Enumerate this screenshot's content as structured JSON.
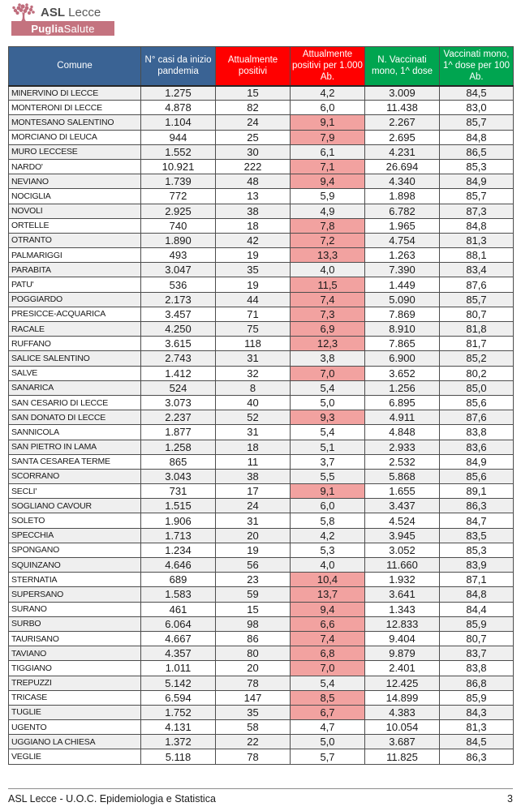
{
  "logo": {
    "asl_bold": "ASL",
    "asl_rest": " Lecce",
    "banner_bold": "Puglia",
    "banner_rest": "Salute",
    "banner_bg": "#c4737f",
    "tree_color": "#bf6d7d"
  },
  "table": {
    "headers": [
      {
        "label": "Comune",
        "bg": "#3a6394"
      },
      {
        "label": "N° casi da inizio pandemia",
        "bg": "#3a6394"
      },
      {
        "label": "Attualmente positivi",
        "bg": "#ff0000"
      },
      {
        "label": "Attualmente positivi per 1.000 Ab.",
        "bg": "#ff0000"
      },
      {
        "label": "N. Vaccinati mono, 1^ dose",
        "bg": "#00a550"
      },
      {
        "label": "Vaccinati mono, 1^ dose per 100 Ab.",
        "bg": "#00a550"
      }
    ],
    "highlight_color": "#f2a2a0",
    "rows": [
      {
        "comune": "MINERVINO DI LECCE",
        "casi": "1.275",
        "pos": "15",
        "rate": "4,2",
        "hl": false,
        "vacc": "3.009",
        "cov": "84,5"
      },
      {
        "comune": "MONTERONI DI LECCE",
        "casi": "4.878",
        "pos": "82",
        "rate": "6,0",
        "hl": false,
        "vacc": "11.438",
        "cov": "83,0"
      },
      {
        "comune": "MONTESANO SALENTINO",
        "casi": "1.104",
        "pos": "24",
        "rate": "9,1",
        "hl": true,
        "vacc": "2.267",
        "cov": "85,7"
      },
      {
        "comune": "MORCIANO DI LEUCA",
        "casi": "944",
        "pos": "25",
        "rate": "7,9",
        "hl": true,
        "vacc": "2.695",
        "cov": "84,8"
      },
      {
        "comune": "MURO LECCESE",
        "casi": "1.552",
        "pos": "30",
        "rate": "6,1",
        "hl": false,
        "vacc": "4.231",
        "cov": "86,5"
      },
      {
        "comune": "NARDO'",
        "casi": "10.921",
        "pos": "222",
        "rate": "7,1",
        "hl": true,
        "vacc": "26.694",
        "cov": "85,3"
      },
      {
        "comune": "NEVIANO",
        "casi": "1.739",
        "pos": "48",
        "rate": "9,4",
        "hl": true,
        "vacc": "4.340",
        "cov": "84,9"
      },
      {
        "comune": "NOCIGLIA",
        "casi": "772",
        "pos": "13",
        "rate": "5,9",
        "hl": false,
        "vacc": "1.898",
        "cov": "85,7"
      },
      {
        "comune": "NOVOLI",
        "casi": "2.925",
        "pos": "38",
        "rate": "4,9",
        "hl": false,
        "vacc": "6.782",
        "cov": "87,3"
      },
      {
        "comune": "ORTELLE",
        "casi": "740",
        "pos": "18",
        "rate": "7,8",
        "hl": true,
        "vacc": "1.965",
        "cov": "84,8"
      },
      {
        "comune": "OTRANTO",
        "casi": "1.890",
        "pos": "42",
        "rate": "7,2",
        "hl": true,
        "vacc": "4.754",
        "cov": "81,3"
      },
      {
        "comune": "PALMARIGGI",
        "casi": "493",
        "pos": "19",
        "rate": "13,3",
        "hl": true,
        "vacc": "1.263",
        "cov": "88,1"
      },
      {
        "comune": "PARABITA",
        "casi": "3.047",
        "pos": "35",
        "rate": "4,0",
        "hl": false,
        "vacc": "7.390",
        "cov": "83,4"
      },
      {
        "comune": "PATU'",
        "casi": "536",
        "pos": "19",
        "rate": "11,5",
        "hl": true,
        "vacc": "1.449",
        "cov": "87,6"
      },
      {
        "comune": "POGGIARDO",
        "casi": "2.173",
        "pos": "44",
        "rate": "7,4",
        "hl": true,
        "vacc": "5.090",
        "cov": "85,7"
      },
      {
        "comune": "PRESICCE-ACQUARICA",
        "casi": "3.457",
        "pos": "71",
        "rate": "7,3",
        "hl": true,
        "vacc": "7.869",
        "cov": "80,7"
      },
      {
        "comune": "RACALE",
        "casi": "4.250",
        "pos": "75",
        "rate": "6,9",
        "hl": true,
        "vacc": "8.910",
        "cov": "81,8"
      },
      {
        "comune": "RUFFANO",
        "casi": "3.615",
        "pos": "118",
        "rate": "12,3",
        "hl": true,
        "vacc": "7.865",
        "cov": "81,7"
      },
      {
        "comune": "SALICE SALENTINO",
        "casi": "2.743",
        "pos": "31",
        "rate": "3,8",
        "hl": false,
        "vacc": "6.900",
        "cov": "85,2"
      },
      {
        "comune": "SALVE",
        "casi": "1.412",
        "pos": "32",
        "rate": "7,0",
        "hl": true,
        "vacc": "3.652",
        "cov": "80,2"
      },
      {
        "comune": "SANARICA",
        "casi": "524",
        "pos": "8",
        "rate": "5,4",
        "hl": false,
        "vacc": "1.256",
        "cov": "85,0"
      },
      {
        "comune": "SAN CESARIO DI LECCE",
        "casi": "3.073",
        "pos": "40",
        "rate": "5,0",
        "hl": false,
        "vacc": "6.895",
        "cov": "85,6"
      },
      {
        "comune": "SAN DONATO DI LECCE",
        "casi": "2.237",
        "pos": "52",
        "rate": "9,3",
        "hl": true,
        "vacc": "4.911",
        "cov": "87,6"
      },
      {
        "comune": "SANNICOLA",
        "casi": "1.877",
        "pos": "31",
        "rate": "5,4",
        "hl": false,
        "vacc": "4.848",
        "cov": "83,8"
      },
      {
        "comune": "SAN PIETRO IN LAMA",
        "casi": "1.258",
        "pos": "18",
        "rate": "5,1",
        "hl": false,
        "vacc": "2.933",
        "cov": "83,6"
      },
      {
        "comune": "SANTA CESAREA TERME",
        "casi": "865",
        "pos": "11",
        "rate": "3,7",
        "hl": false,
        "vacc": "2.532",
        "cov": "84,9"
      },
      {
        "comune": "SCORRANO",
        "casi": "3.043",
        "pos": "38",
        "rate": "5,5",
        "hl": false,
        "vacc": "5.868",
        "cov": "85,6"
      },
      {
        "comune": "SECLI'",
        "casi": "731",
        "pos": "17",
        "rate": "9,1",
        "hl": true,
        "vacc": "1.655",
        "cov": "89,1"
      },
      {
        "comune": "SOGLIANO CAVOUR",
        "casi": "1.515",
        "pos": "24",
        "rate": "6,0",
        "hl": false,
        "vacc": "3.437",
        "cov": "86,3"
      },
      {
        "comune": "SOLETO",
        "casi": "1.906",
        "pos": "31",
        "rate": "5,8",
        "hl": false,
        "vacc": "4.524",
        "cov": "84,7"
      },
      {
        "comune": "SPECCHIA",
        "casi": "1.713",
        "pos": "20",
        "rate": "4,2",
        "hl": false,
        "vacc": "3.945",
        "cov": "83,5"
      },
      {
        "comune": "SPONGANO",
        "casi": "1.234",
        "pos": "19",
        "rate": "5,3",
        "hl": false,
        "vacc": "3.052",
        "cov": "85,3"
      },
      {
        "comune": "SQUINZANO",
        "casi": "4.646",
        "pos": "56",
        "rate": "4,0",
        "hl": false,
        "vacc": "11.660",
        "cov": "83,9"
      },
      {
        "comune": "STERNATIA",
        "casi": "689",
        "pos": "23",
        "rate": "10,4",
        "hl": true,
        "vacc": "1.932",
        "cov": "87,1"
      },
      {
        "comune": "SUPERSANO",
        "casi": "1.583",
        "pos": "59",
        "rate": "13,7",
        "hl": true,
        "vacc": "3.641",
        "cov": "84,8"
      },
      {
        "comune": "SURANO",
        "casi": "461",
        "pos": "15",
        "rate": "9,4",
        "hl": true,
        "vacc": "1.343",
        "cov": "84,4"
      },
      {
        "comune": "SURBO",
        "casi": "6.064",
        "pos": "98",
        "rate": "6,6",
        "hl": true,
        "vacc": "12.833",
        "cov": "85,9"
      },
      {
        "comune": "TAURISANO",
        "casi": "4.667",
        "pos": "86",
        "rate": "7,4",
        "hl": true,
        "vacc": "9.404",
        "cov": "80,7"
      },
      {
        "comune": "TAVIANO",
        "casi": "4.357",
        "pos": "80",
        "rate": "6,8",
        "hl": true,
        "vacc": "9.879",
        "cov": "83,7"
      },
      {
        "comune": "TIGGIANO",
        "casi": "1.011",
        "pos": "20",
        "rate": "7,0",
        "hl": true,
        "vacc": "2.401",
        "cov": "83,8"
      },
      {
        "comune": "TREPUZZI",
        "casi": "5.142",
        "pos": "78",
        "rate": "5,4",
        "hl": false,
        "vacc": "12.425",
        "cov": "86,8"
      },
      {
        "comune": "TRICASE",
        "casi": "6.594",
        "pos": "147",
        "rate": "8,5",
        "hl": true,
        "vacc": "14.899",
        "cov": "85,9"
      },
      {
        "comune": "TUGLIE",
        "casi": "1.752",
        "pos": "35",
        "rate": "6,7",
        "hl": true,
        "vacc": "4.383",
        "cov": "84,3"
      },
      {
        "comune": "UGENTO",
        "casi": "4.131",
        "pos": "58",
        "rate": "4,7",
        "hl": false,
        "vacc": "10.054",
        "cov": "81,3"
      },
      {
        "comune": "UGGIANO LA CHIESA",
        "casi": "1.372",
        "pos": "22",
        "rate": "5,0",
        "hl": false,
        "vacc": "3.687",
        "cov": "84,5"
      },
      {
        "comune": "VEGLIE",
        "casi": "5.118",
        "pos": "78",
        "rate": "5,7",
        "hl": false,
        "vacc": "11.825",
        "cov": "86,3"
      }
    ]
  },
  "footer": {
    "left": "ASL Lecce - U.O.C. Epidemiologia e Statistica",
    "page": "3"
  }
}
